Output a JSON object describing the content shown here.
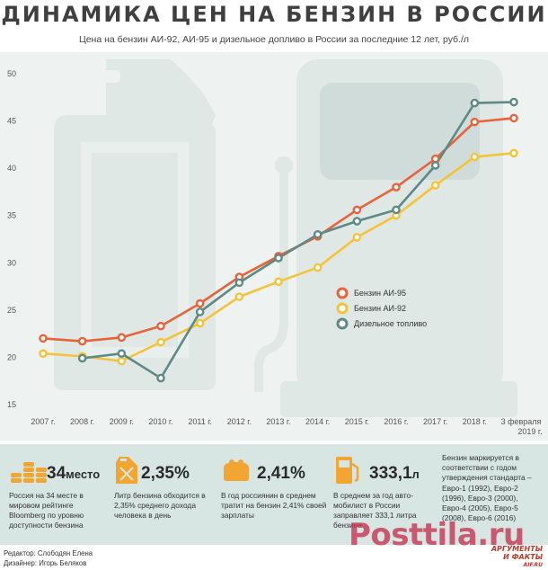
{
  "header": {
    "title": "ДИНАМИКА ЦЕН НА БЕНЗИН В РОССИИ",
    "subtitle": "Цена на бензин АИ-92, АИ-95 и дизельное допливо в России за последние 12 лет, руб./л"
  },
  "chart_data": {
    "type": "line",
    "title": "ДИНАМИКА ЦЕН НА БЕНЗИН В РОССИИ",
    "subtitle": "Цена на бензин АИ-92, АИ-95 и дизельное допливо в России за последние 12 лет, руб./л",
    "categories": [
      "2007 г.",
      "2008 г.",
      "2009 г.",
      "2010 г.",
      "2011 г.",
      "2012 г.",
      "2013 г.",
      "2014 г.",
      "2015 г.",
      "2016 г.",
      "2017 г.",
      "2018 г.",
      "3 февраля 2019 г."
    ],
    "y_ticks": [
      15,
      20,
      25,
      30,
      35,
      40,
      45,
      50
    ],
    "ylim": [
      15,
      50
    ],
    "grid": false,
    "legend_position": "center-right",
    "series": [
      {
        "name": "Бензин АИ-95",
        "color": "#e8623a",
        "values": [
          22.0,
          21.7,
          22.1,
          23.3,
          25.7,
          28.5,
          30.7,
          32.8,
          35.6,
          38.0,
          41.0,
          44.9,
          45.3
        ]
      },
      {
        "name": "Бензин АИ-92",
        "color": "#f5c339",
        "values": [
          20.4,
          20.1,
          19.6,
          21.6,
          23.6,
          26.4,
          28.0,
          29.5,
          32.7,
          35.0,
          38.2,
          41.2,
          41.6
        ]
      },
      {
        "name": "Дизельное топливо",
        "color": "#5d8a86",
        "values": [
          null,
          19.9,
          20.4,
          17.8,
          24.8,
          27.9,
          30.5,
          33.0,
          34.4,
          35.6,
          40.3,
          46.9,
          47.0
        ]
      }
    ]
  },
  "facts": [
    {
      "big": "34",
      "small": "место",
      "text": "Россия на 34 месте в мировом рейтинге Bloomberg по уровню доступности бензина",
      "icon": "coins-stack-icon",
      "color": "#f3a531"
    },
    {
      "big": "2,35%",
      "small": "",
      "text": "Литр бензина обходится в 2,35% среднего дохода человека в день",
      "icon": "jerrycan-icon",
      "color": "#f3a531"
    },
    {
      "big": "2,41%",
      "small": "",
      "text": "В год россиянин в среднем тратит на бензин 2,41% своей зарплаты",
      "icon": "purse-icon",
      "color": "#f3a531"
    },
    {
      "big": "333,1",
      "small": "л",
      "text": "В среднем за год авто- мобилист в России заправляет 333,1 литра бензина",
      "icon": "fuel-pump-icon",
      "color": "#f3a531"
    }
  ],
  "standards_note": "Бензин маркируется в соответствии с годом утверждения стандарта – Евро-1 (1992), Евро-2 (1996), Евро-3 (2000), Евро-4 (2005), Евро-5 (2008), Евро-6 (2016)",
  "credits": {
    "editor": "Редактор: Слободян Елена",
    "designer": "Дизайнер: Игорь Беляков"
  },
  "logo": {
    "line1": "АРГУМЕНТЫ",
    "line2": "И ФАКТЫ",
    "line3": "AIF.RU"
  },
  "watermark": "Posttila.ru"
}
